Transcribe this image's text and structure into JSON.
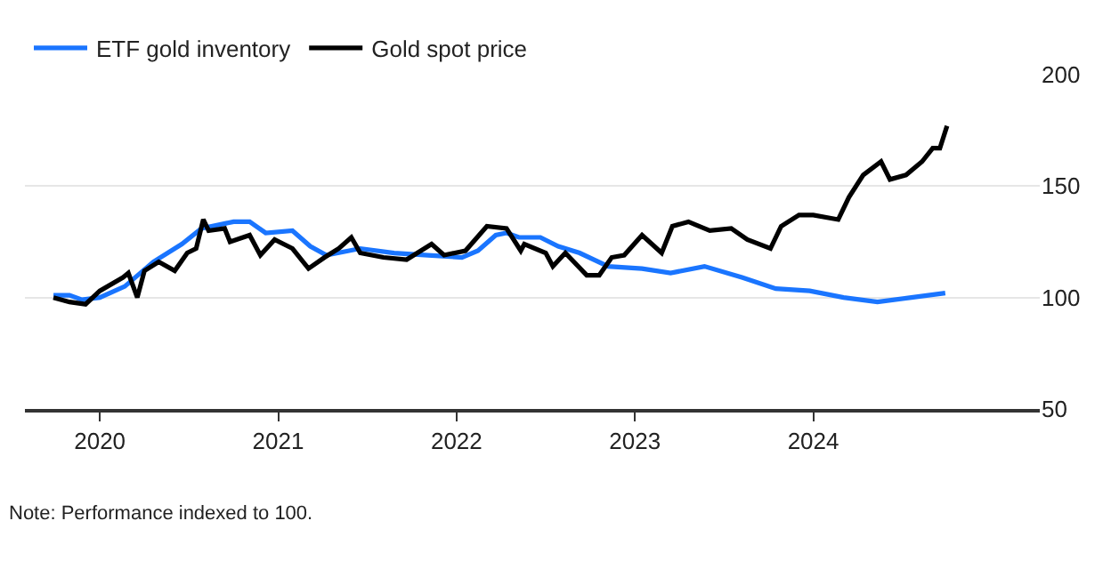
{
  "chart_data": {
    "type": "line",
    "series": [
      {
        "name": "ETF gold inventory",
        "color": "#1a75ff",
        "x": [
          2019.74,
          2019.83,
          2019.9,
          2020.0,
          2020.14,
          2020.3,
          2020.46,
          2020.57,
          2020.75,
          2020.84,
          2020.93,
          2021.08,
          2021.18,
          2021.27,
          2021.46,
          2021.65,
          2021.84,
          2022.03,
          2022.12,
          2022.22,
          2022.28,
          2022.35,
          2022.47,
          2022.57,
          2022.69,
          2022.85,
          2023.04,
          2023.2,
          2023.39,
          2023.6,
          2023.79,
          2023.98,
          2024.17,
          2024.36,
          2024.55,
          2024.74
        ],
        "values": [
          101,
          101,
          99,
          100,
          105,
          116,
          124,
          131,
          134,
          134,
          129,
          130,
          123,
          119,
          122,
          120,
          119,
          118,
          121,
          128,
          129,
          127,
          127,
          123,
          120,
          114,
          113,
          111,
          114,
          109,
          104,
          103,
          100,
          98,
          100,
          102
        ]
      },
      {
        "name": "Gold spot price",
        "color": "#000000",
        "x": [
          2019.74,
          2019.83,
          2019.92,
          2020.0,
          2020.13,
          2020.16,
          2020.21,
          2020.25,
          2020.33,
          2020.42,
          2020.49,
          2020.54,
          2020.58,
          2020.61,
          2020.7,
          2020.73,
          2020.84,
          2020.9,
          2020.98,
          2021.08,
          2021.17,
          2021.26,
          2021.34,
          2021.41,
          2021.46,
          2021.59,
          2021.72,
          2021.86,
          2021.93,
          2022.05,
          2022.17,
          2022.28,
          2022.36,
          2022.38,
          2022.5,
          2022.54,
          2022.61,
          2022.73,
          2022.8,
          2022.87,
          2022.94,
          2023.04,
          2023.15,
          2023.21,
          2023.3,
          2023.42,
          2023.54,
          2023.63,
          2023.76,
          2023.82,
          2023.92,
          2024.0,
          2024.14,
          2024.2,
          2024.28,
          2024.38,
          2024.43,
          2024.52,
          2024.61,
          2024.67,
          2024.71,
          2024.75
        ],
        "values": [
          100,
          98,
          97,
          103,
          109,
          111,
          100,
          112,
          116,
          112,
          120,
          122,
          135,
          130,
          131,
          125,
          128,
          119,
          126,
          122,
          113,
          118,
          122,
          127,
          120,
          118,
          117,
          124,
          119,
          121,
          132,
          131,
          121,
          124,
          120,
          114,
          120,
          110,
          110,
          118,
          119,
          128,
          120,
          132,
          134,
          130,
          131,
          126,
          122,
          132,
          137,
          137,
          135,
          145,
          155,
          161,
          153,
          155,
          161,
          167,
          167,
          177
        ]
      }
    ],
    "xlim": [
      2019.58,
      2025.27
    ],
    "xticks": [
      2020,
      2021,
      2022,
      2023,
      2024
    ],
    "ylim": [
      50,
      200
    ],
    "yticks": [
      50,
      100,
      150,
      200
    ],
    "grid": "y",
    "legend": "top left",
    "marker": "none",
    "line_style": "solid",
    "annotations": [
      "Note: Performance indexed to 100."
    ]
  }
}
